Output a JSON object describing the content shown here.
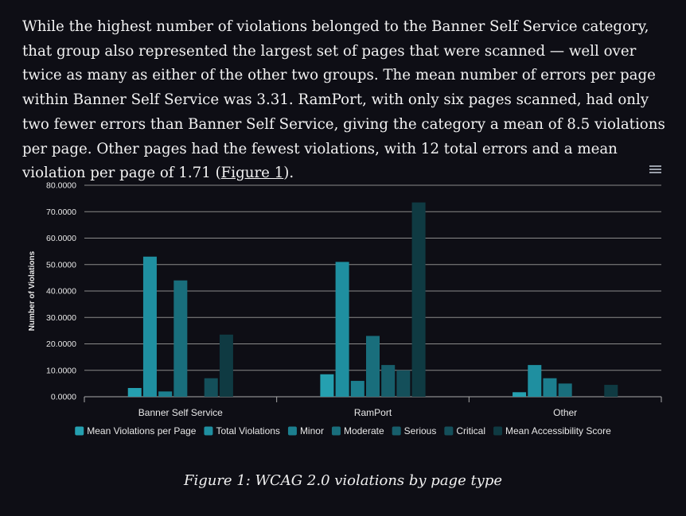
{
  "paragraph": {
    "text_before_link": "While the highest number of violations belonged to the Banner Self Service category, that group also represented the largest set of pages that were scanned — well over twice as many as either of the other two groups. The mean number of errors per page within Banner Self Service was 3.31. RamPort, with only six pages scanned, had only two fewer errors than Banner Self Service, giving the category a mean of 8.5 violations per page. Other pages had the fewest violations, with 12 total errors and a mean violation per page of 1.71 (",
    "link_text": "Figure 1",
    "text_after_link": ")."
  },
  "menu_icon": "hamburger-menu-icon",
  "caption": "Figure 1: WCAG 2.0 violations by page type",
  "chart_data": {
    "type": "bar",
    "categories": [
      "Banner Self Service",
      "RamPort",
      "Other"
    ],
    "ylabel": "Number of Violations",
    "xlabel": "",
    "ylim": [
      0,
      80
    ],
    "yticks": [
      "0.0000",
      "10.0000",
      "20.0000",
      "30.0000",
      "40.0000",
      "50.0000",
      "60.0000",
      "70.0000",
      "80.0000"
    ],
    "ytick_values": [
      0,
      10,
      20,
      30,
      40,
      50,
      60,
      70,
      80
    ],
    "grid": true,
    "legend_position": "bottom",
    "series": [
      {
        "name": "Mean Violations per Page",
        "color": "#25a0b0",
        "values": [
          3.31,
          8.5,
          1.71
        ]
      },
      {
        "name": "Total Violations",
        "color": "#1f8fa0",
        "values": [
          53,
          51,
          12
        ]
      },
      {
        "name": "Minor",
        "color": "#1c7f8f",
        "values": [
          2,
          6,
          7
        ]
      },
      {
        "name": "Moderate",
        "color": "#196e7c",
        "values": [
          44,
          23,
          5
        ]
      },
      {
        "name": "Serious",
        "color": "#175e6b",
        "values": [
          0,
          12,
          0
        ]
      },
      {
        "name": "Critical",
        "color": "#144f5a",
        "values": [
          7,
          10,
          0
        ]
      },
      {
        "name": "Mean Accessibility Score",
        "color": "#0f3a42",
        "values": [
          23.5,
          73.5,
          4.5
        ]
      }
    ]
  }
}
